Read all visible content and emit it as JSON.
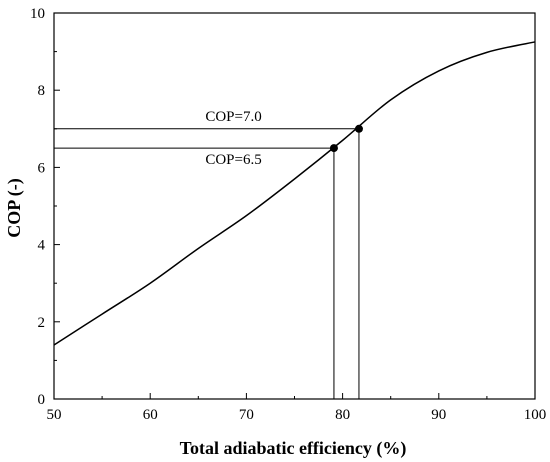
{
  "chart_data": {
    "type": "line",
    "xlabel": "Total adiabatic efficiency (%)",
    "ylabel": "COP (-)",
    "xlim": [
      50,
      100
    ],
    "ylim": [
      0,
      10
    ],
    "x_ticks": [
      50,
      60,
      70,
      80,
      90,
      100
    ],
    "y_ticks": [
      0,
      2,
      4,
      6,
      8,
      10
    ],
    "grid": false,
    "legend": "none",
    "series": [
      {
        "x": [
          50,
          55,
          60,
          65,
          70,
          75,
          80,
          85,
          90,
          95,
          100
        ],
        "y": [
          1.4,
          2.2,
          3.0,
          3.9,
          4.75,
          5.7,
          6.7,
          7.75,
          8.5,
          8.98,
          9.25
        ]
      }
    ],
    "markers": [
      {
        "x": 79.1,
        "y": 6.5,
        "label": "COP=6.5"
      },
      {
        "x": 81.7,
        "y": 7.0,
        "label": "COP=7.0"
      }
    ]
  }
}
